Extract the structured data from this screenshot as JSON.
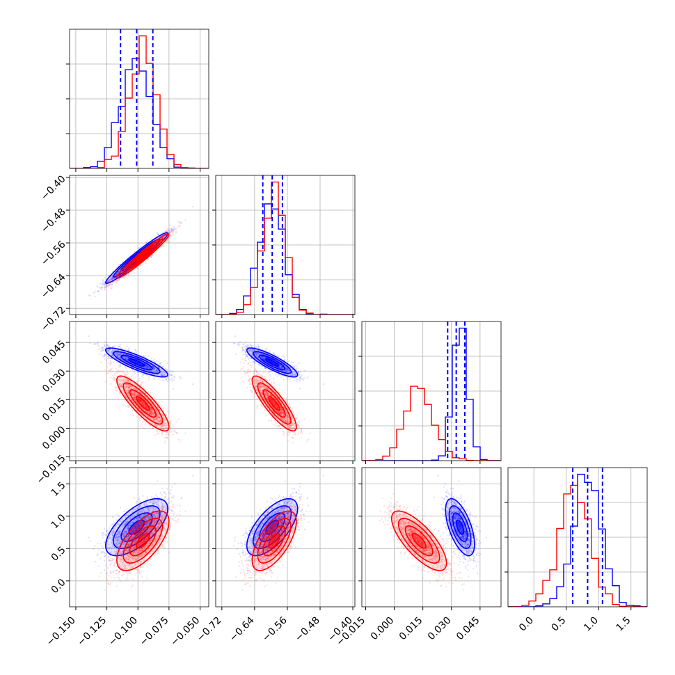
{
  "chart_data": {
    "type": "corner",
    "description": "Corner plot of 4 parameters, two sample sets (blue, red). Diagonal: 1-D histograms with dashed quantile lines (blue). Off-diagonal: 2-D scatter + density contours.",
    "colors": {
      "series_a": "#0000ff",
      "series_b": "#ff0000",
      "grid": "#b0b0b0",
      "axis": "#000000"
    },
    "grid": true,
    "series": [
      {
        "color": "#0000ff",
        "means": [
          -0.101,
          -0.597,
          0.0345,
          0.83
        ],
        "sds": [
          0.0125,
          0.031,
          0.0038,
          0.22
        ],
        "corr": [
          [
            1,
            0.97,
            -0.85,
            0.65
          ],
          [
            0.97,
            1,
            -0.85,
            0.65
          ],
          [
            -0.85,
            -0.85,
            1,
            -0.6
          ],
          [
            0.65,
            0.65,
            -0.6,
            1
          ]
        ]
      },
      {
        "color": "#ff0000",
        "means": [
          -0.096,
          -0.592,
          0.013,
          0.62
        ],
        "sds": [
          0.0105,
          0.027,
          0.0072,
          0.23
        ],
        "corr": [
          [
            1,
            0.97,
            -0.85,
            0.65
          ],
          [
            0.97,
            1,
            -0.85,
            0.65
          ],
          [
            -0.85,
            -0.85,
            1,
            -0.75
          ],
          [
            0.65,
            0.65,
            -0.75,
            1
          ]
        ]
      }
    ],
    "quantile_lines": [
      [
        -0.114,
        -0.101,
        -0.088
      ],
      [
        -0.62,
        -0.597,
        -0.572
      ],
      [
        0.028,
        0.0325,
        0.037
      ],
      [
        0.6,
        0.83,
        1.06
      ]
    ],
    "axis_ranges": [
      [
        -0.155,
        -0.043
      ],
      [
        -0.735,
        -0.395
      ],
      [
        -0.017,
        0.056
      ],
      [
        -0.4,
        1.75
      ]
    ],
    "ticks": [
      [
        "−0.150",
        "−0.125",
        "−0.100",
        "−0.075",
        "−0.050"
      ],
      [
        "−0.72",
        "−0.64",
        "−0.56",
        "−0.48",
        "−0.40"
      ],
      [
        "−0.015",
        "0.000",
        "0.015",
        "0.030",
        "0.045"
      ],
      [
        "0.0",
        "0.5",
        "1.0",
        "1.5"
      ]
    ],
    "tick_values": [
      [
        -0.15,
        -0.125,
        -0.1,
        -0.075,
        -0.05
      ],
      [
        -0.72,
        -0.64,
        -0.56,
        -0.48,
        -0.4
      ],
      [
        -0.015,
        0.0,
        0.015,
        0.03,
        0.045
      ],
      [
        0.0,
        0.5,
        1.0,
        1.5
      ]
    ]
  }
}
